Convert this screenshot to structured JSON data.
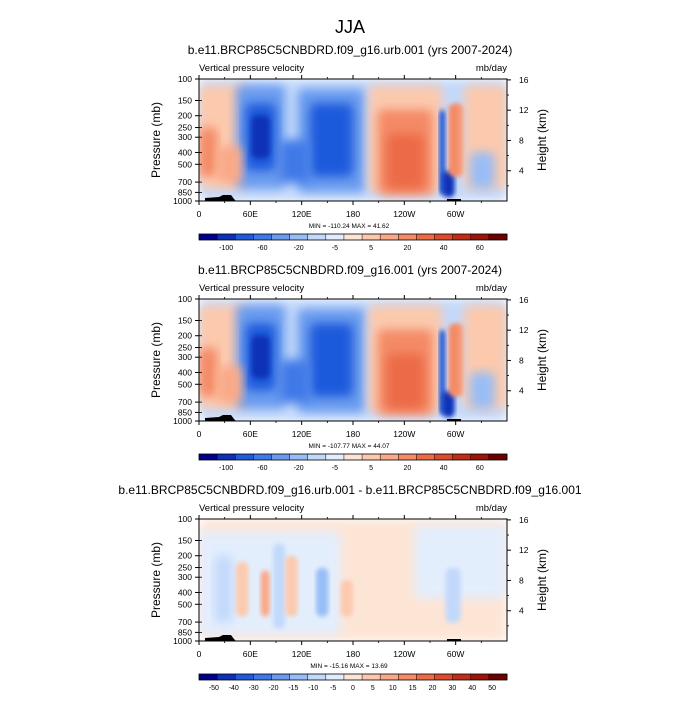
{
  "main_title": "JJA",
  "shared": {
    "variable": "Vertical pressure velocity",
    "units": "mb/day",
    "y_left_label": "Pressure (mb)",
    "y_right_label": "Height (km)",
    "pressure_ticks": [
      "100",
      "150",
      "200",
      "250",
      "300",
      "400",
      "500",
      "700",
      "850",
      "1000"
    ],
    "height_ticks": [
      "16",
      "12",
      "8",
      "4"
    ],
    "lon_ticks": [
      "0",
      "60E",
      "120E",
      "180",
      "120W",
      "60W"
    ]
  },
  "chart_data": [
    {
      "type": "heatmap",
      "title": "b.e11.BRCP85C5CNBDRD.f09_g16.urb.001 (yrs 2007-2024)",
      "stats": "MIN = -110.24  MAX =  41.62",
      "colorbar_labels": [
        "-100",
        "-60",
        "-20",
        "-5",
        "5",
        "20",
        "40",
        "60"
      ],
      "colorbar_colors": [
        "#00008b",
        "#0b31b8",
        "#1f5adc",
        "#3f79e8",
        "#6b9bef",
        "#98bdf6",
        "#c3d9fb",
        "#e3eefd",
        "#fde5d6",
        "#fcc9ad",
        "#f9a987",
        "#f48a66",
        "#ec6a46",
        "#dc4b2c",
        "#c02d18",
        "#9b1608",
        "#6b0000"
      ],
      "ylim": [
        1000,
        100
      ],
      "xlim": [
        0,
        360
      ]
    },
    {
      "type": "heatmap",
      "title": "b.e11.BRCP85C5CNBDRD.f09_g16.001 (yrs 2007-2024)",
      "stats": "MIN = -107.77  MAX =  44.07",
      "colorbar_labels": [
        "-100",
        "-60",
        "-20",
        "-5",
        "5",
        "20",
        "40",
        "60"
      ],
      "colorbar_colors": [
        "#00008b",
        "#0b31b8",
        "#1f5adc",
        "#3f79e8",
        "#6b9bef",
        "#98bdf6",
        "#c3d9fb",
        "#e3eefd",
        "#fde5d6",
        "#fcc9ad",
        "#f9a987",
        "#f48a66",
        "#ec6a46",
        "#dc4b2c",
        "#c02d18",
        "#9b1608",
        "#6b0000"
      ],
      "ylim": [
        1000,
        100
      ],
      "xlim": [
        0,
        360
      ]
    },
    {
      "type": "heatmap",
      "title": "b.e11.BRCP85C5CNBDRD.f09_g16.urb.001 - b.e11.BRCP85C5CNBDRD.f09_g16.001",
      "stats": "MIN = -15.16  MAX =  13.69",
      "colorbar_labels": [
        "-50",
        "-40",
        "-30",
        "-20",
        "-15",
        "-10",
        "-5",
        "0",
        "5",
        "10",
        "15",
        "20",
        "30",
        "40",
        "50"
      ],
      "colorbar_colors": [
        "#00008b",
        "#0b31b8",
        "#1f5adc",
        "#3f79e8",
        "#6b9bef",
        "#98bdf6",
        "#c3d9fb",
        "#e3eefd",
        "#fde5d6",
        "#fcc9ad",
        "#f9a987",
        "#f48a66",
        "#ec6a46",
        "#dc4b2c",
        "#c02d18",
        "#9b1608",
        "#6b0000"
      ],
      "ylim": [
        1000,
        100
      ],
      "xlim": [
        0,
        360
      ]
    }
  ]
}
